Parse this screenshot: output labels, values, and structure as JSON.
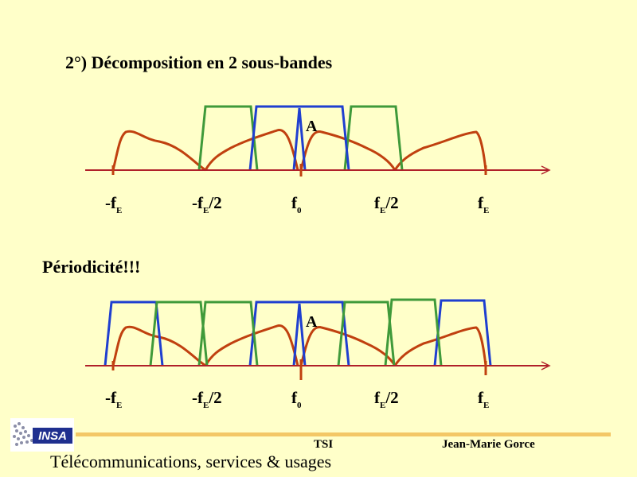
{
  "slide": {
    "title": "2°) Décomposition en 2 sous-bandes",
    "subtitle": "Périodicité!!!",
    "footer_tsi": "TSI",
    "footer_author": "Jean-Marie Gorce",
    "footer_org": "Télécommunications, services & usages",
    "logo_text": "INSA"
  },
  "diagram": {
    "peak_label": "A",
    "axis_labels": [
      {
        "main": "-f",
        "sub": "E",
        "rest": ""
      },
      {
        "main": "-f",
        "sub": "E",
        "rest": "/2"
      },
      {
        "main": "f",
        "sub": "0",
        "rest": ""
      },
      {
        "main": "f",
        "sub": "E",
        "rest": "/2"
      },
      {
        "main": "f",
        "sub": "E",
        "rest": ""
      }
    ],
    "colors": {
      "spectrum": "#C0400F",
      "lowband": "#1F3FD0",
      "highband": "#3F9A3A",
      "axis": "#B0202A"
    }
  }
}
